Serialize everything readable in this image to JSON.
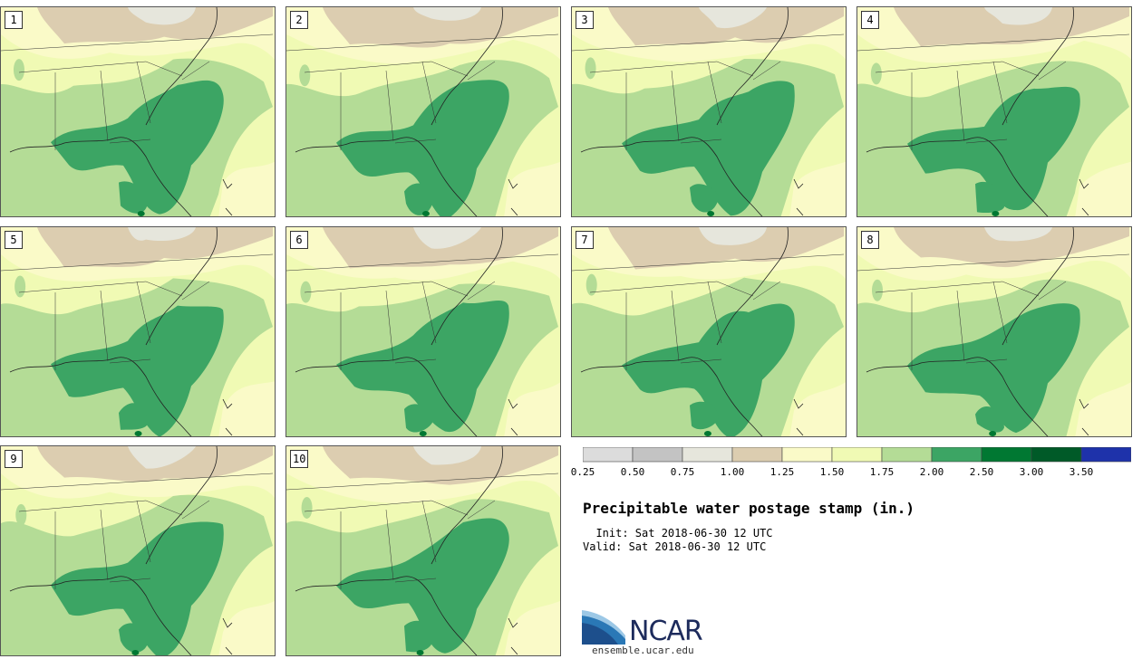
{
  "panels": [
    "1",
    "2",
    "3",
    "4",
    "5",
    "6",
    "7",
    "8",
    "9",
    "10"
  ],
  "colorbar": {
    "ticks": [
      "0.25",
      "0.50",
      "0.75",
      "1.00",
      "1.25",
      "1.50",
      "1.75",
      "2.00",
      "2.50",
      "3.00",
      "3.50"
    ],
    "colors": [
      "#dcdcdc",
      "#c3c3c3",
      "#e6e6dc",
      "#dccdb0",
      "#fafac8",
      "#f0fab4",
      "#b4dc96",
      "#3ca564",
      "#007832",
      "#005a28",
      "#1e32aa"
    ]
  },
  "title": "Precipitable water postage stamp (in.)",
  "init_label": "  Init: Sat 2018-06-30 12 UTC",
  "valid_label": "Valid: Sat 2018-06-30 12 UTC",
  "logo": {
    "name": "NCAR",
    "url": "ensemble.ucar.edu"
  }
}
